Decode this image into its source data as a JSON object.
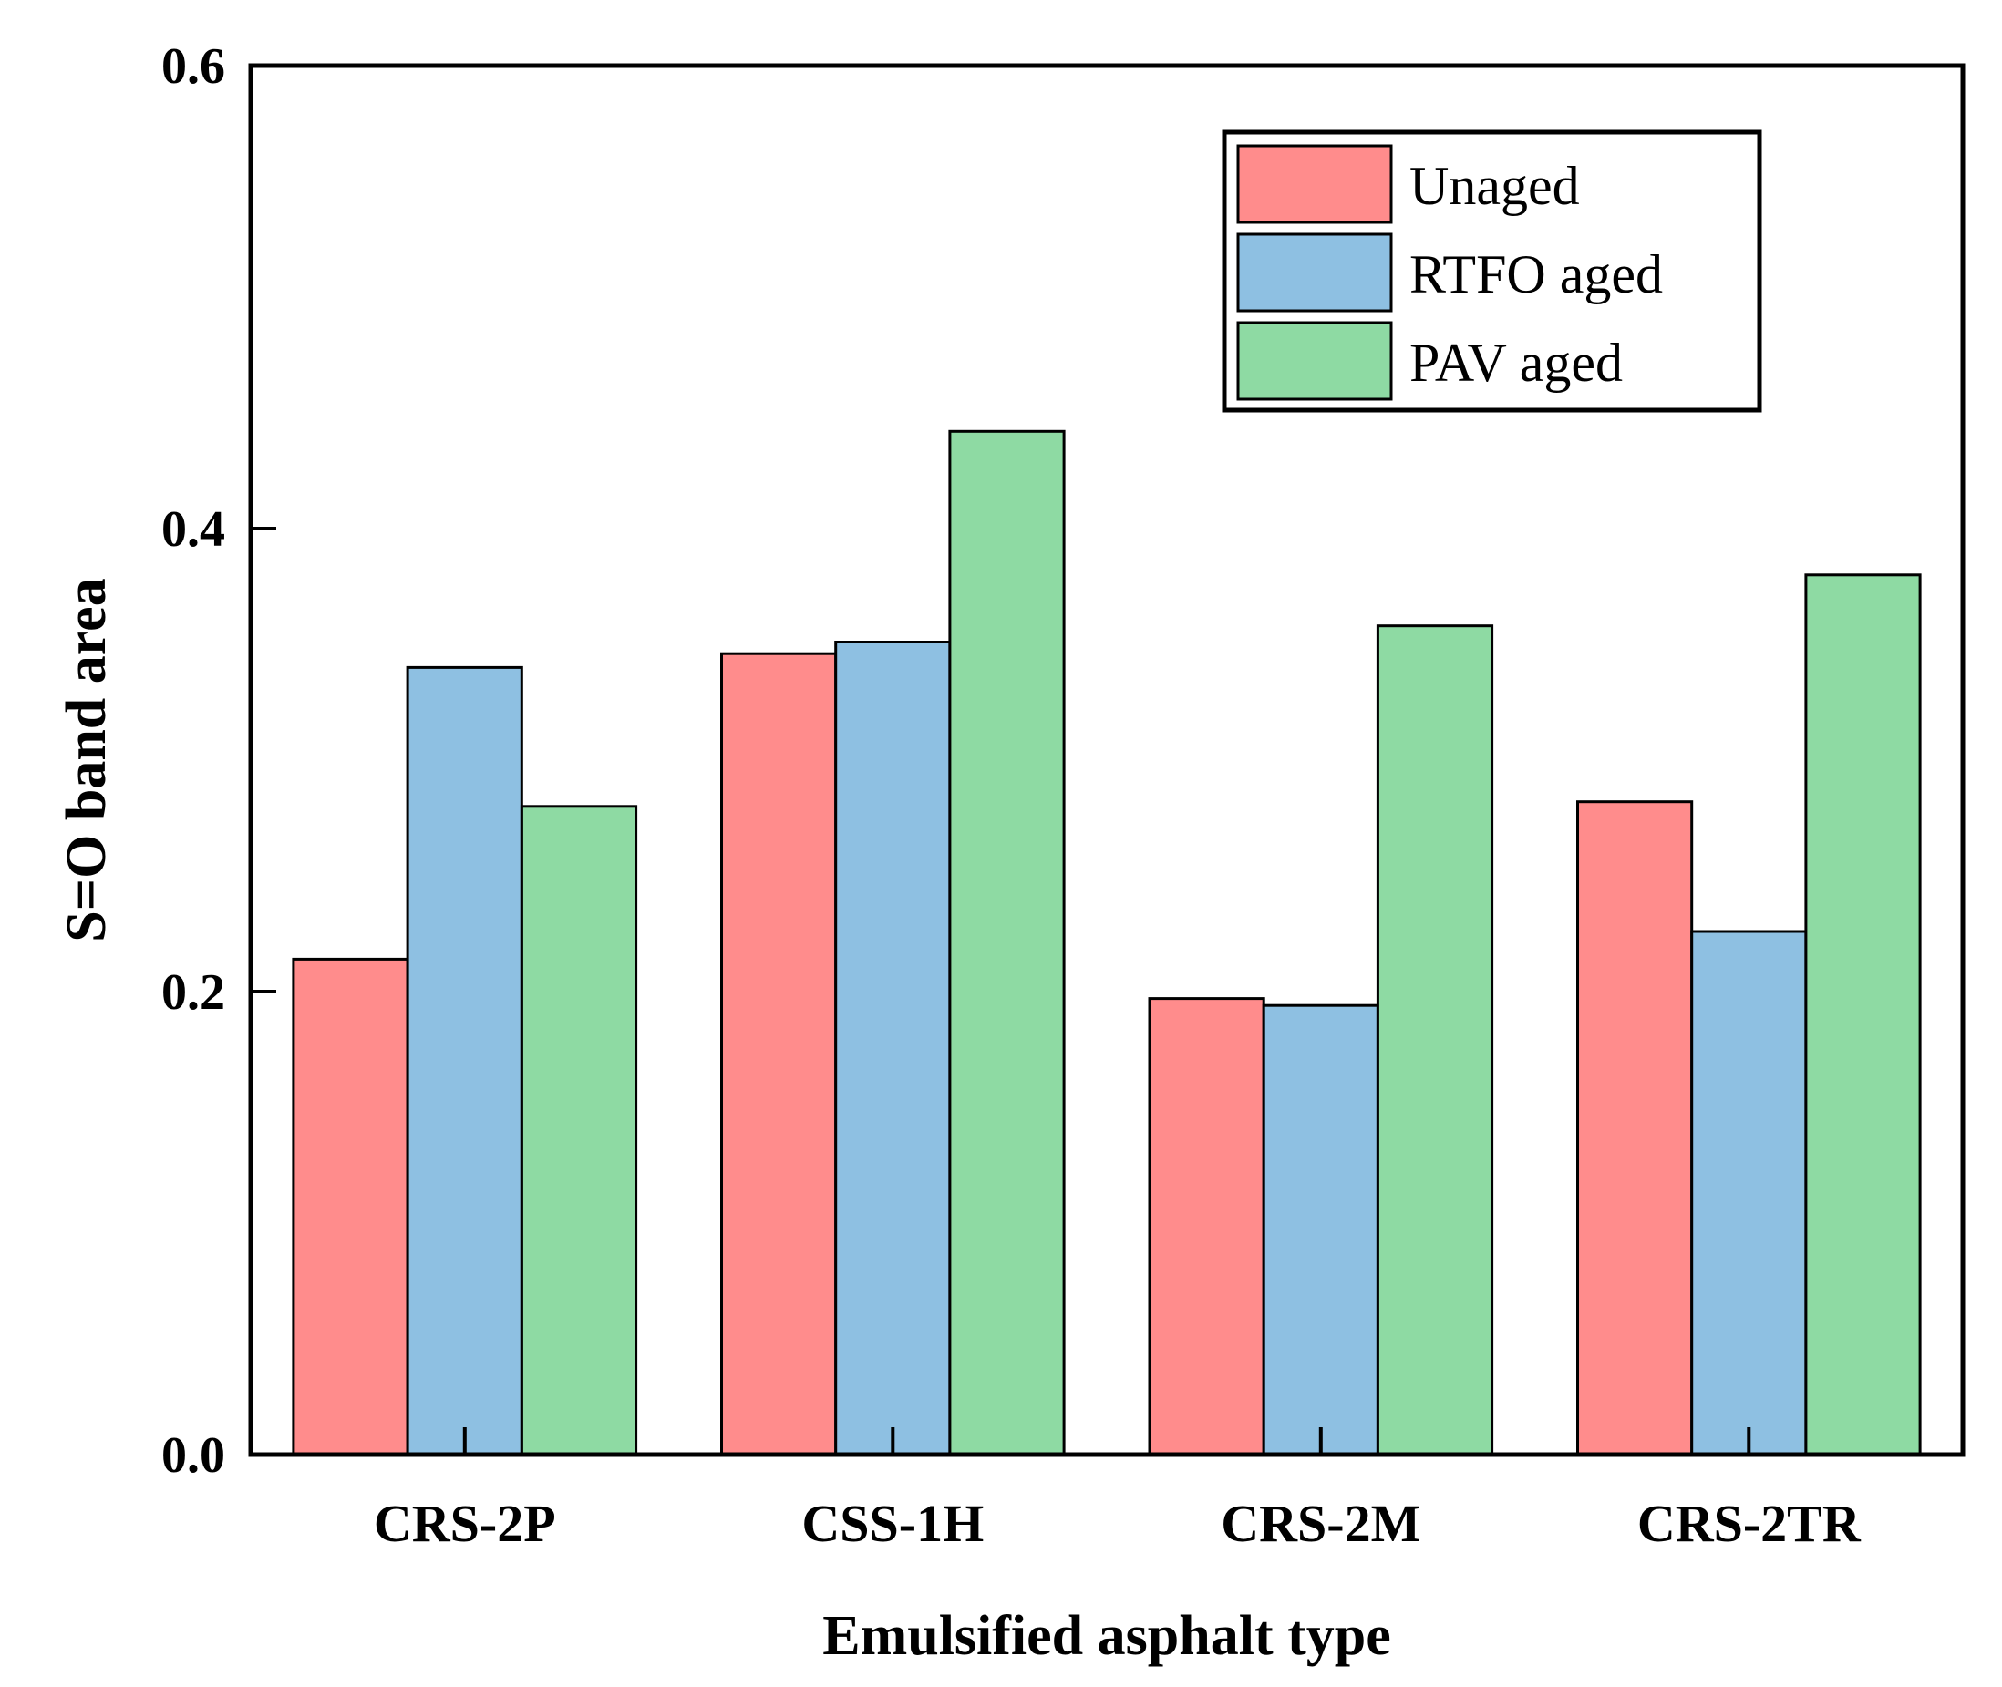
{
  "chart_data": {
    "type": "bar",
    "xlabel": "Emulsified asphalt type",
    "ylabel": "S=O band area",
    "ylim": [
      0,
      0.6
    ],
    "yticks": [
      "0.0",
      "0.2",
      "0.4",
      "0.6"
    ],
    "categories": [
      "CRS-2P",
      "CSS-1H",
      "CRS-2M",
      "CRS-2TR"
    ],
    "series": [
      {
        "name": "Unaged",
        "color": "#ff8c8c",
        "values": [
          0.214,
          0.346,
          0.197,
          0.282
        ]
      },
      {
        "name": "RTFO aged",
        "color": "#8ec0e2",
        "values": [
          0.34,
          0.351,
          0.194,
          0.226
        ]
      },
      {
        "name": "PAV aged",
        "color": "#8edaa3",
        "values": [
          0.28,
          0.442,
          0.358,
          0.38
        ]
      }
    ],
    "legend_position": "top-right",
    "grid": false
  }
}
